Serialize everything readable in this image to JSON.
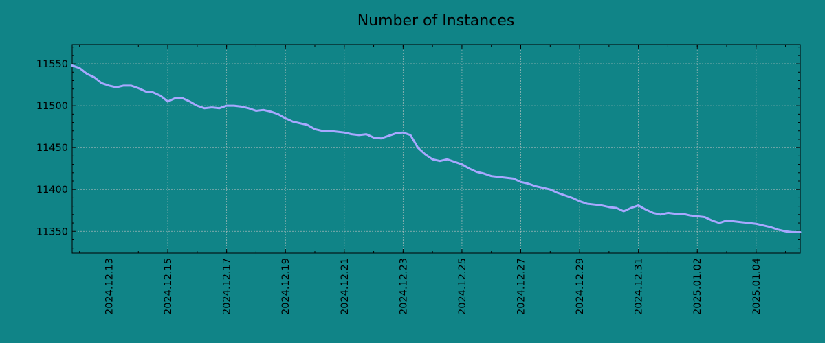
{
  "chart_data": {
    "type": "line",
    "title": "Number of Instances",
    "xlabel": "",
    "ylabel": "",
    "grid": true,
    "colors": {
      "background": "#108487",
      "line": "#a8a8ff",
      "grid": "#9fb8b8",
      "axes": "#000000"
    },
    "xlim": [
      "2024-12-11 18:00",
      "2025-01-05 12:00"
    ],
    "ylim": [
      11324,
      11573
    ],
    "x_ticks": [
      "2024.12.13",
      "2024.12.15",
      "2024.12.17",
      "2024.12.19",
      "2024.12.21",
      "2024.12.23",
      "2024.12.25",
      "2024.12.27",
      "2024.12.29",
      "2024.12.31",
      "2025.01.02",
      "2025.01.04"
    ],
    "y_ticks": [
      "11350",
      "11400",
      "11450",
      "11500",
      "11550"
    ],
    "series": [
      {
        "x": [
          "2024-12-11 18:00",
          "2024-12-12 00:00",
          "2024-12-12 06:00",
          "2024-12-12 12:00",
          "2024-12-12 18:00",
          "2024-12-13 00:00",
          "2024-12-13 06:00",
          "2024-12-13 12:00",
          "2024-12-13 18:00",
          "2024-12-14 00:00",
          "2024-12-14 06:00",
          "2024-12-14 12:00",
          "2024-12-14 18:00",
          "2024-12-15 00:00",
          "2024-12-15 06:00",
          "2024-12-15 12:00",
          "2024-12-15 18:00",
          "2024-12-16 00:00",
          "2024-12-16 06:00",
          "2024-12-16 12:00",
          "2024-12-16 18:00",
          "2024-12-17 00:00",
          "2024-12-17 06:00",
          "2024-12-17 12:00",
          "2024-12-17 18:00",
          "2024-12-18 00:00",
          "2024-12-18 06:00",
          "2024-12-18 12:00",
          "2024-12-18 18:00",
          "2024-12-19 00:00",
          "2024-12-19 06:00",
          "2024-12-19 12:00",
          "2024-12-19 18:00",
          "2024-12-20 00:00",
          "2024-12-20 06:00",
          "2024-12-20 12:00",
          "2024-12-20 18:00",
          "2024-12-21 00:00",
          "2024-12-21 06:00",
          "2024-12-21 12:00",
          "2024-12-21 18:00",
          "2024-12-22 00:00",
          "2024-12-22 06:00",
          "2024-12-22 12:00",
          "2024-12-22 18:00",
          "2024-12-23 00:00",
          "2024-12-23 06:00",
          "2024-12-23 12:00",
          "2024-12-23 18:00",
          "2024-12-24 00:00",
          "2024-12-24 06:00",
          "2024-12-24 12:00",
          "2024-12-24 18:00",
          "2024-12-25 00:00",
          "2024-12-25 06:00",
          "2024-12-25 12:00",
          "2024-12-25 18:00",
          "2024-12-26 00:00",
          "2024-12-26 06:00",
          "2024-12-26 12:00",
          "2024-12-26 18:00",
          "2024-12-27 00:00",
          "2024-12-27 06:00",
          "2024-12-27 12:00",
          "2024-12-27 18:00",
          "2024-12-28 00:00",
          "2024-12-28 06:00",
          "2024-12-28 12:00",
          "2024-12-28 18:00",
          "2024-12-29 00:00",
          "2024-12-29 06:00",
          "2024-12-29 12:00",
          "2024-12-29 18:00",
          "2024-12-30 00:00",
          "2024-12-30 06:00",
          "2024-12-30 12:00",
          "2024-12-30 18:00",
          "2024-12-31 00:00",
          "2024-12-31 06:00",
          "2024-12-31 12:00",
          "2024-12-31 18:00",
          "2025-01-01 00:00",
          "2025-01-01 06:00",
          "2025-01-01 12:00",
          "2025-01-01 18:00",
          "2025-01-02 00:00",
          "2025-01-02 06:00",
          "2025-01-02 12:00",
          "2025-01-02 18:00",
          "2025-01-03 00:00",
          "2025-01-03 06:00",
          "2025-01-03 12:00",
          "2025-01-03 18:00",
          "2025-01-04 00:00",
          "2025-01-04 06:00",
          "2025-01-04 12:00",
          "2025-01-04 18:00",
          "2025-01-05 00:00",
          "2025-01-05 06:00",
          "2025-01-05 12:00"
        ],
        "values": [
          11548,
          11545,
          11538,
          11534,
          11527,
          11524,
          11522,
          11524,
          11524,
          11521,
          11517,
          11516,
          11512,
          11505,
          11509,
          11509,
          11505,
          11500,
          11497,
          11498,
          11497,
          11500,
          11500,
          11499,
          11497,
          11494,
          11495,
          11493,
          11490,
          11485,
          11481,
          11479,
          11477,
          11472,
          11470,
          11470,
          11469,
          11468,
          11466,
          11465,
          11466,
          11462,
          11461,
          11464,
          11467,
          11468,
          11465,
          11450,
          11442,
          11436,
          11434,
          11436,
          11433,
          11430,
          11425,
          11421,
          11419,
          11416,
          11415,
          11414,
          11413,
          11409,
          11407,
          11404,
          11402,
          11400,
          11396,
          11393,
          11390,
          11386,
          11383,
          11382,
          11381,
          11379,
          11378,
          11374,
          11378,
          11381,
          11376,
          11372,
          11370,
          11372,
          11371,
          11371,
          11369,
          11368,
          11367,
          11363,
          11360,
          11363,
          11362,
          11361,
          11360,
          11359,
          11357,
          11355,
          11352,
          11350,
          11349,
          11349
        ]
      }
    ]
  }
}
